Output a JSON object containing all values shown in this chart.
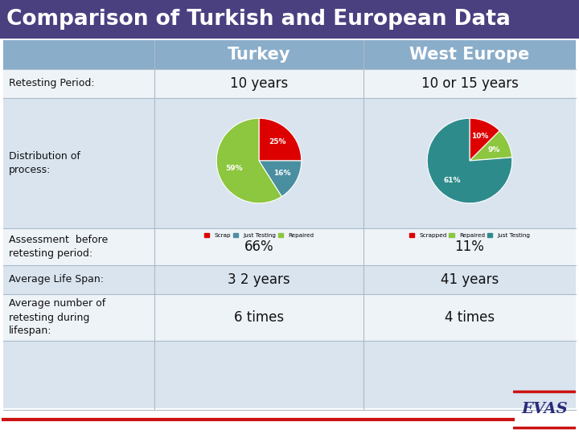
{
  "title": "Comparison of Turkish and European Data",
  "title_bg": "#4a4080",
  "title_color": "#ffffff",
  "header_bg": "#8aadca",
  "header_turkey": "Turkey",
  "header_europe": "West Europe",
  "row_bg_light": "#d9e4ef",
  "row_bg_white": "#eef3f8",
  "rows": [
    {
      "label": "Retesting Period:",
      "turkey": "10 years",
      "europe": "10 or 15 years"
    },
    {
      "label": "Distribution of\nprocess:",
      "turkey": "",
      "europe": ""
    },
    {
      "label": "Assessment  before\nretesting period:",
      "turkey": "66%",
      "europe": "11%"
    },
    {
      "label": "Average Life Span:",
      "turkey": "3 2 years",
      "europe": "41 years"
    },
    {
      "label": "Average number of\nretesting during\nlifespan:",
      "turkey": "6 times",
      "europe": "4 times"
    }
  ],
  "turkey_pie": {
    "values": [
      25,
      16,
      59
    ],
    "labels": [
      "25%",
      "16%",
      "59%"
    ],
    "colors": [
      "#dd0000",
      "#4a8fa0",
      "#8dc63f"
    ],
    "legend": [
      "Scrap",
      "Just Testing",
      "Repaired"
    ],
    "legend_colors": [
      "#dd0000",
      "#4a8fa0",
      "#8dc63f"
    ]
  },
  "europe_pie": {
    "values": [
      10,
      9,
      61
    ],
    "labels": [
      "10%",
      "9%",
      "61%"
    ],
    "colors": [
      "#dd0000",
      "#8dc63f",
      "#2e8b8b"
    ],
    "legend": [
      "Scrapped",
      "Repaired",
      "Just Testing"
    ],
    "legend_colors": [
      "#dd0000",
      "#8dc63f",
      "#2e8b8b"
    ]
  },
  "bottom_line_color": "#cc1111",
  "font_color": "#111111",
  "evas_color": "#2a2a7a",
  "evas_line_color": "#cc1111"
}
